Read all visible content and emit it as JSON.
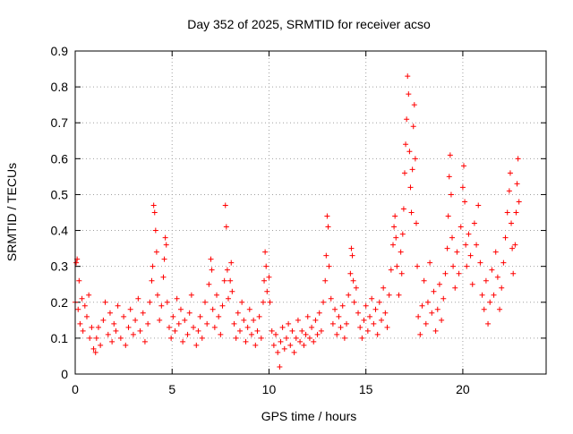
{
  "chart_data": {
    "type": "scatter",
    "title": "Day 352 of 2025, SRMTID for receiver acso",
    "xlabel": "GPS time / hours",
    "ylabel": "SRMTID / TECUs",
    "xlim": [
      0,
      24.3
    ],
    "ylim": [
      0,
      0.9
    ],
    "xticks": [
      0,
      5,
      10,
      15,
      20
    ],
    "xtick_labels": [
      "0",
      "5",
      "10",
      "15",
      "20"
    ],
    "yticks": [
      0,
      0.1,
      0.2,
      0.3,
      0.4,
      0.5,
      0.6,
      0.7,
      0.8,
      0.9
    ],
    "ytick_labels": [
      "0",
      "0.1",
      "0.2",
      "0.3",
      "0.4",
      "0.5",
      "0.6",
      "0.7",
      "0.8",
      "0.9"
    ],
    "grid": true,
    "marker": "plus",
    "color": "#ff0000",
    "series": [
      {
        "name": "SRMTID",
        "points": [
          [
            0.0,
            0.2
          ],
          [
            0.05,
            0.31
          ],
          [
            0.1,
            0.32
          ],
          [
            0.15,
            0.18
          ],
          [
            0.2,
            0.26
          ],
          [
            0.25,
            0.14
          ],
          [
            0.35,
            0.21
          ],
          [
            0.4,
            0.12
          ],
          [
            0.5,
            0.19
          ],
          [
            0.6,
            0.16
          ],
          [
            0.7,
            0.22
          ],
          [
            0.75,
            0.1
          ],
          [
            0.85,
            0.13
          ],
          [
            0.95,
            0.07
          ],
          [
            1.05,
            0.06
          ],
          [
            1.1,
            0.1
          ],
          [
            1.2,
            0.13
          ],
          [
            1.3,
            0.08
          ],
          [
            1.45,
            0.15
          ],
          [
            1.55,
            0.2
          ],
          [
            1.7,
            0.11
          ],
          [
            1.8,
            0.17
          ],
          [
            1.9,
            0.09
          ],
          [
            2.0,
            0.14
          ],
          [
            2.1,
            0.12
          ],
          [
            2.2,
            0.19
          ],
          [
            2.35,
            0.1
          ],
          [
            2.5,
            0.16
          ],
          [
            2.6,
            0.08
          ],
          [
            2.75,
            0.13
          ],
          [
            2.85,
            0.18
          ],
          [
            3.0,
            0.11
          ],
          [
            3.1,
            0.15
          ],
          [
            3.25,
            0.21
          ],
          [
            3.35,
            0.12
          ],
          [
            3.5,
            0.17
          ],
          [
            3.6,
            0.09
          ],
          [
            3.75,
            0.14
          ],
          [
            3.85,
            0.2
          ],
          [
            3.95,
            0.26
          ],
          [
            4.0,
            0.3
          ],
          [
            4.05,
            0.47
          ],
          [
            4.1,
            0.45
          ],
          [
            4.15,
            0.4
          ],
          [
            4.2,
            0.34
          ],
          [
            4.25,
            0.22
          ],
          [
            4.35,
            0.15
          ],
          [
            4.45,
            0.19
          ],
          [
            4.55,
            0.27
          ],
          [
            4.6,
            0.32
          ],
          [
            4.65,
            0.38
          ],
          [
            4.7,
            0.36
          ],
          [
            4.75,
            0.2
          ],
          [
            4.85,
            0.13
          ],
          [
            4.95,
            0.1
          ],
          [
            5.05,
            0.16
          ],
          [
            5.15,
            0.12
          ],
          [
            5.25,
            0.21
          ],
          [
            5.35,
            0.14
          ],
          [
            5.45,
            0.18
          ],
          [
            5.55,
            0.09
          ],
          [
            5.65,
            0.15
          ],
          [
            5.8,
            0.11
          ],
          [
            5.9,
            0.17
          ],
          [
            6.0,
            0.22
          ],
          [
            6.1,
            0.13
          ],
          [
            6.25,
            0.08
          ],
          [
            6.35,
            0.12
          ],
          [
            6.45,
            0.16
          ],
          [
            6.55,
            0.1
          ],
          [
            6.7,
            0.2
          ],
          [
            6.8,
            0.14
          ],
          [
            6.9,
            0.25
          ],
          [
            7.0,
            0.32
          ],
          [
            7.05,
            0.29
          ],
          [
            7.1,
            0.18
          ],
          [
            7.2,
            0.13
          ],
          [
            7.3,
            0.22
          ],
          [
            7.4,
            0.16
          ],
          [
            7.5,
            0.11
          ],
          [
            7.6,
            0.19
          ],
          [
            7.7,
            0.26
          ],
          [
            7.75,
            0.47
          ],
          [
            7.8,
            0.41
          ],
          [
            7.85,
            0.29
          ],
          [
            7.9,
            0.21
          ],
          [
            8.0,
            0.26
          ],
          [
            8.05,
            0.31
          ],
          [
            8.1,
            0.23
          ],
          [
            8.2,
            0.14
          ],
          [
            8.3,
            0.1
          ],
          [
            8.4,
            0.17
          ],
          [
            8.5,
            0.12
          ],
          [
            8.6,
            0.2
          ],
          [
            8.7,
            0.15
          ],
          [
            8.8,
            0.09
          ],
          [
            8.9,
            0.13
          ],
          [
            9.0,
            0.18
          ],
          [
            9.1,
            0.11
          ],
          [
            9.2,
            0.15
          ],
          [
            9.3,
            0.08
          ],
          [
            9.4,
            0.12
          ],
          [
            9.5,
            0.16
          ],
          [
            9.6,
            0.1
          ],
          [
            9.7,
            0.2
          ],
          [
            9.75,
            0.26
          ],
          [
            9.8,
            0.34
          ],
          [
            9.85,
            0.3
          ],
          [
            9.9,
            0.23
          ],
          [
            10.0,
            0.27
          ],
          [
            10.05,
            0.2
          ],
          [
            10.15,
            0.12
          ],
          [
            10.25,
            0.08
          ],
          [
            10.35,
            0.11
          ],
          [
            10.45,
            0.06
          ],
          [
            10.55,
            0.02
          ],
          [
            10.6,
            0.09
          ],
          [
            10.7,
            0.13
          ],
          [
            10.8,
            0.07
          ],
          [
            10.9,
            0.1
          ],
          [
            11.0,
            0.14
          ],
          [
            11.1,
            0.08
          ],
          [
            11.2,
            0.12
          ],
          [
            11.3,
            0.06
          ],
          [
            11.4,
            0.1
          ],
          [
            11.5,
            0.15
          ],
          [
            11.6,
            0.09
          ],
          [
            11.7,
            0.12
          ],
          [
            11.8,
            0.08
          ],
          [
            11.9,
            0.11
          ],
          [
            12.0,
            0.16
          ],
          [
            12.1,
            0.1
          ],
          [
            12.2,
            0.13
          ],
          [
            12.3,
            0.09
          ],
          [
            12.4,
            0.15
          ],
          [
            12.5,
            0.11
          ],
          [
            12.6,
            0.17
          ],
          [
            12.7,
            0.12
          ],
          [
            12.8,
            0.2
          ],
          [
            12.9,
            0.26
          ],
          [
            12.95,
            0.33
          ],
          [
            13.0,
            0.44
          ],
          [
            13.05,
            0.41
          ],
          [
            13.1,
            0.3
          ],
          [
            13.2,
            0.21
          ],
          [
            13.3,
            0.14
          ],
          [
            13.4,
            0.18
          ],
          [
            13.5,
            0.11
          ],
          [
            13.6,
            0.16
          ],
          [
            13.7,
            0.13
          ],
          [
            13.8,
            0.19
          ],
          [
            13.9,
            0.1
          ],
          [
            14.0,
            0.14
          ],
          [
            14.1,
            0.22
          ],
          [
            14.2,
            0.28
          ],
          [
            14.25,
            0.35
          ],
          [
            14.3,
            0.33
          ],
          [
            14.35,
            0.26
          ],
          [
            14.4,
            0.2
          ],
          [
            14.5,
            0.24
          ],
          [
            14.6,
            0.17
          ],
          [
            14.7,
            0.13
          ],
          [
            14.8,
            0.1
          ],
          [
            14.9,
            0.15
          ],
          [
            15.0,
            0.19
          ],
          [
            15.1,
            0.12
          ],
          [
            15.2,
            0.16
          ],
          [
            15.3,
            0.21
          ],
          [
            15.4,
            0.14
          ],
          [
            15.5,
            0.18
          ],
          [
            15.6,
            0.11
          ],
          [
            15.7,
            0.2
          ],
          [
            15.8,
            0.15
          ],
          [
            15.9,
            0.24
          ],
          [
            16.0,
            0.17
          ],
          [
            16.1,
            0.13
          ],
          [
            16.2,
            0.22
          ],
          [
            16.3,
            0.29
          ],
          [
            16.4,
            0.36
          ],
          [
            16.45,
            0.41
          ],
          [
            16.5,
            0.44
          ],
          [
            16.55,
            0.38
          ],
          [
            16.6,
            0.3
          ],
          [
            16.7,
            0.22
          ],
          [
            16.8,
            0.34
          ],
          [
            16.85,
            0.28
          ],
          [
            16.9,
            0.39
          ],
          [
            16.95,
            0.46
          ],
          [
            17.0,
            0.56
          ],
          [
            17.05,
            0.64
          ],
          [
            17.1,
            0.71
          ],
          [
            17.15,
            0.83
          ],
          [
            17.2,
            0.78
          ],
          [
            17.25,
            0.62
          ],
          [
            17.3,
            0.52
          ],
          [
            17.35,
            0.45
          ],
          [
            17.4,
            0.57
          ],
          [
            17.45,
            0.69
          ],
          [
            17.5,
            0.75
          ],
          [
            17.55,
            0.6
          ],
          [
            17.6,
            0.42
          ],
          [
            17.65,
            0.3
          ],
          [
            17.7,
            0.16
          ],
          [
            17.8,
            0.11
          ],
          [
            17.9,
            0.19
          ],
          [
            18.0,
            0.26
          ],
          [
            18.1,
            0.14
          ],
          [
            18.2,
            0.2
          ],
          [
            18.3,
            0.31
          ],
          [
            18.4,
            0.17
          ],
          [
            18.5,
            0.23
          ],
          [
            18.6,
            0.12
          ],
          [
            18.7,
            0.18
          ],
          [
            18.8,
            0.25
          ],
          [
            18.9,
            0.15
          ],
          [
            19.0,
            0.21
          ],
          [
            19.1,
            0.28
          ],
          [
            19.2,
            0.35
          ],
          [
            19.25,
            0.44
          ],
          [
            19.3,
            0.55
          ],
          [
            19.35,
            0.61
          ],
          [
            19.4,
            0.5
          ],
          [
            19.45,
            0.38
          ],
          [
            19.5,
            0.3
          ],
          [
            19.6,
            0.24
          ],
          [
            19.7,
            0.34
          ],
          [
            19.8,
            0.28
          ],
          [
            19.9,
            0.41
          ],
          [
            20.0,
            0.52
          ],
          [
            20.05,
            0.58
          ],
          [
            20.1,
            0.48
          ],
          [
            20.15,
            0.36
          ],
          [
            20.2,
            0.3
          ],
          [
            20.3,
            0.39
          ],
          [
            20.4,
            0.33
          ],
          [
            20.5,
            0.25
          ],
          [
            20.6,
            0.42
          ],
          [
            20.7,
            0.36
          ],
          [
            20.8,
            0.47
          ],
          [
            20.9,
            0.31
          ],
          [
            21.0,
            0.22
          ],
          [
            21.1,
            0.18
          ],
          [
            21.2,
            0.26
          ],
          [
            21.3,
            0.14
          ],
          [
            21.4,
            0.2
          ],
          [
            21.5,
            0.29
          ],
          [
            21.6,
            0.22
          ],
          [
            21.7,
            0.34
          ],
          [
            21.8,
            0.27
          ],
          [
            21.9,
            0.18
          ],
          [
            22.0,
            0.24
          ],
          [
            22.1,
            0.31
          ],
          [
            22.2,
            0.38
          ],
          [
            22.3,
            0.45
          ],
          [
            22.4,
            0.51
          ],
          [
            22.45,
            0.56
          ],
          [
            22.5,
            0.42
          ],
          [
            22.55,
            0.35
          ],
          [
            22.6,
            0.28
          ],
          [
            22.7,
            0.36
          ],
          [
            22.75,
            0.45
          ],
          [
            22.8,
            0.53
          ],
          [
            22.85,
            0.6
          ],
          [
            22.9,
            0.48
          ]
        ]
      }
    ]
  }
}
